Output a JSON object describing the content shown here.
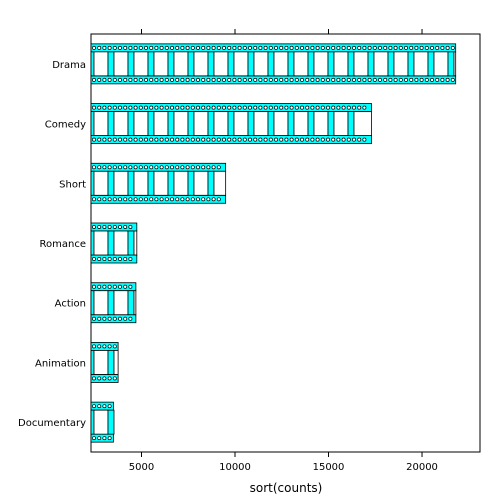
{
  "chart_data": {
    "type": "bar",
    "orientation": "horizontal",
    "title": "",
    "xlabel": "sort(counts)",
    "ylabel": "",
    "categories": [
      "Drama",
      "Comedy",
      "Short",
      "Romance",
      "Action",
      "Animation",
      "Documentary"
    ],
    "values": [
      21800,
      17300,
      9500,
      4750,
      4700,
      3750,
      3500
    ],
    "xlim": [
      2300,
      23100
    ],
    "xticks": [
      5000,
      10000,
      15000,
      20000
    ],
    "bar_fill": "#00ffff",
    "bar_stroke": "#000000",
    "style": "filmstrip",
    "grid": false,
    "legend": "none"
  }
}
